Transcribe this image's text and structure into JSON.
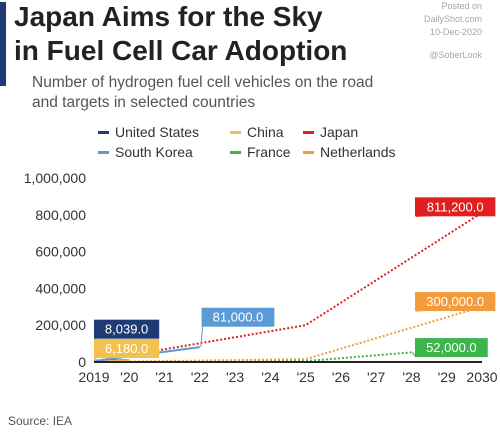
{
  "header": {
    "title_lines": [
      "Japan Aims for the Sky",
      "in Fuel Cell Car Adoption"
    ],
    "subtitle_lines": [
      "Number of hydrogen fuel cell vehicles on the road",
      "and targets in selected countries"
    ],
    "credit_lines": [
      "Posted on",
      "DailyShot.com",
      "10-Dec-2020"
    ],
    "handle": "@SoberLook"
  },
  "footer": {
    "source": "Source: IEA"
  },
  "chart_data": {
    "type": "line",
    "y_ticks": [
      "0",
      "200,000",
      "400,000",
      "600,000",
      "800,000",
      "1,000,000"
    ],
    "y_tick_values": [
      0,
      200000,
      400000,
      600000,
      800000,
      1000000
    ],
    "ylim": [
      0,
      1000000
    ],
    "x_ticks": [
      "2019",
      "'20",
      "'21",
      "'22",
      "'23",
      "'24",
      "'25",
      "'26",
      "'27",
      "'28",
      "'29",
      "2030"
    ],
    "x_tick_values": [
      2019,
      2020,
      2021,
      2022,
      2023,
      2024,
      2025,
      2026,
      2027,
      2028,
      2029,
      2030
    ],
    "xlim": [
      2019,
      2030
    ],
    "grid": false,
    "legend_position": "top",
    "series": [
      {
        "name": "United States",
        "color": "#1f3b73",
        "style": "solid",
        "points": [
          [
            2019,
            8039
          ],
          [
            2020,
            8039
          ]
        ]
      },
      {
        "name": "China",
        "color": "#f2c14e",
        "style": "solid",
        "points": [
          [
            2019,
            6180
          ],
          [
            2020,
            6180
          ]
        ]
      },
      {
        "name": "Japan",
        "color": "#e02020",
        "style": "dotted",
        "points": [
          [
            2019,
            3600
          ],
          [
            2025,
            200000
          ],
          [
            2030,
            811200
          ]
        ]
      },
      {
        "name": "South Korea",
        "color": "#5b9bd5",
        "style": "solid",
        "points": [
          [
            2019,
            5000
          ],
          [
            2022,
            81000
          ]
        ]
      },
      {
        "name": "France",
        "color": "#3cb54a",
        "style": "dotted",
        "points": [
          [
            2019,
            500
          ],
          [
            2025,
            5000
          ],
          [
            2028,
            52000
          ]
        ]
      },
      {
        "name": "Netherlands",
        "color": "#f39c3c",
        "style": "dotted",
        "points": [
          [
            2019,
            200
          ],
          [
            2025,
            15000
          ],
          [
            2030,
            300000
          ]
        ]
      }
    ],
    "annotations": [
      {
        "text": "8,039.0",
        "color": "#1f3b73",
        "x": 2019,
        "y": 8039,
        "anchor_label_year": 2019.0,
        "anchor_label_value": 230000
      },
      {
        "text": "6,180.0",
        "color": "#f2c14e",
        "x": 2019,
        "y": 6180,
        "anchor_label_year": 2019.0,
        "anchor_label_value": 125000
      },
      {
        "text": "81,000.0",
        "color": "#5b9bd5",
        "x": 2022,
        "y": 81000,
        "anchor_label_year": 2022.05,
        "anchor_label_value": 295000
      },
      {
        "text": "811,200.0",
        "color": "#e02020",
        "x": 2030,
        "y": 811200,
        "anchor_label_year": 2028.1,
        "anchor_label_value": 895000
      },
      {
        "text": "300,000.0",
        "color": "#f39c3c",
        "x": 2030,
        "y": 300000,
        "anchor_label_year": 2028.1,
        "anchor_label_value": 380000
      },
      {
        "text": "52,000.0",
        "color": "#3cb54a",
        "x": 2028,
        "y": 52000,
        "anchor_label_year": 2028.1,
        "anchor_label_value": 130000
      }
    ]
  }
}
